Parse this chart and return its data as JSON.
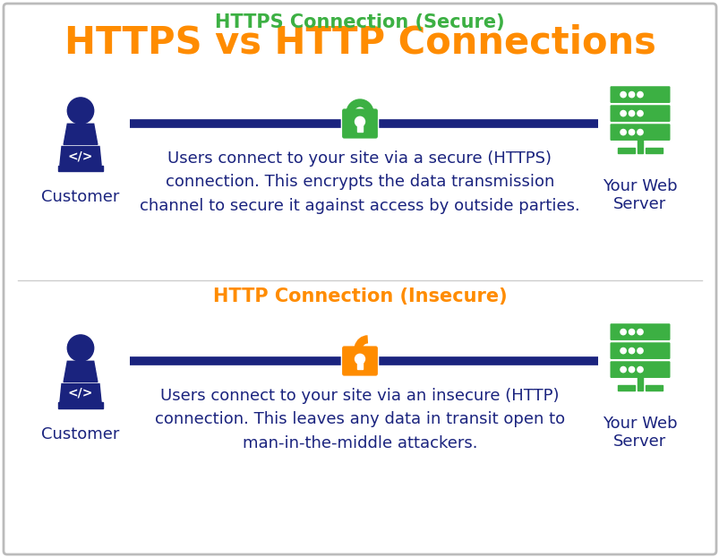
{
  "title": "HTTPS vs HTTP Connections",
  "title_color": "#FF8C00",
  "title_fontsize": 30,
  "bg_color": "#FFFFFF",
  "border_color": "#BBBBBB",
  "https_label": "HTTPS Connection (Secure)",
  "http_label": "HTTP Connection (Insecure)",
  "https_label_color": "#3CB043",
  "http_label_color": "#FF8C00",
  "section_label_fontsize": 15,
  "https_text": "Users connect to your site via a secure (HTTPS)\nconnection. This encrypts the data transmission\nchannel to secure it against access by outside parties.",
  "http_text": "Users connect to your site via an insecure (HTTP)\nconnection. This leaves any data in transit open to\nman-in-the-middle attackers.",
  "body_text_color": "#1a237e",
  "body_fontsize": 13,
  "customer_label": "Customer",
  "server_label": "Your Web\nServer",
  "label_color": "#1a237e",
  "label_fontsize": 13,
  "person_color": "#1a237e",
  "server_bar_color": "#3CB043",
  "lock_secure_color": "#3CB043",
  "lock_insecure_color": "#FF8C00",
  "line_color": "#1a237e",
  "line_width": 7
}
